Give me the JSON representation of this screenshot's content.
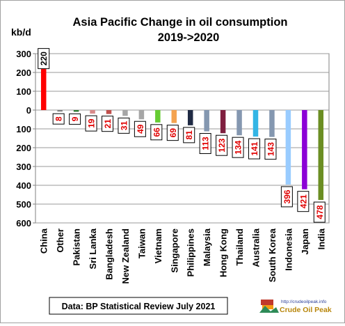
{
  "chart_data": {
    "type": "bar",
    "title_line1": "Asia Pacific Change in oil consumption",
    "title_line2": "2019->2020",
    "unit": "kb/d",
    "ylim": [
      -600,
      300
    ],
    "yticks": [
      300,
      200,
      100,
      0,
      -100,
      -200,
      -300,
      -400,
      -500,
      -600
    ],
    "ytick_labels": [
      "300",
      "200",
      "100",
      "0",
      "100",
      "200",
      "300",
      "400",
      "500",
      "600"
    ],
    "grid": true,
    "categories": [
      "China",
      "Other",
      "Pakistan",
      "Sri Lanka",
      "Bangladesh",
      "New Zealand",
      "Taiwan",
      "Vietnam",
      "Singapore",
      "Philippines",
      "Malaysia",
      "Hong Kong",
      "Thailand",
      "Australia",
      "South Korea",
      "Indonesia",
      "Japan",
      "India"
    ],
    "values": [
      220,
      -8,
      -9,
      -19,
      -21,
      -31,
      -49,
      -66,
      -69,
      -81,
      -113,
      -123,
      -134,
      -141,
      -143,
      -396,
      -421,
      -478
    ],
    "data_labels": [
      "220",
      "8",
      "9",
      "19",
      "21",
      "31",
      "49",
      "66",
      "69",
      "81",
      "113",
      "123",
      "134",
      "141",
      "143",
      "396",
      "421",
      "478"
    ],
    "colors": [
      "#ff0000",
      "#808080",
      "#2f7d32",
      "#d98a8a",
      "#c0504d",
      "#a6a6a6",
      "#a6a6a6",
      "#66cc33",
      "#f4a350",
      "#1f2a44",
      "#8497b0",
      "#7f1f3f",
      "#8497b0",
      "#33b5e5",
      "#8497b0",
      "#99ccff",
      "#8b00d6",
      "#6b8e23"
    ],
    "source": "Data: BP Statistical Review July 2021"
  },
  "logo": {
    "url_text": "http://crudeoilpeak.info",
    "name": "Crude Oil Peak"
  }
}
